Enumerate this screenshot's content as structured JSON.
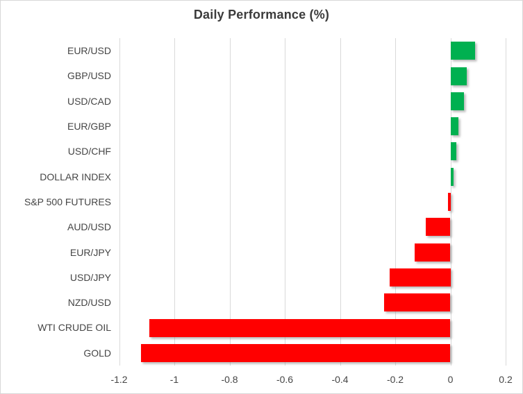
{
  "chart_data": {
    "type": "bar",
    "orientation": "horizontal",
    "title": "Daily Performance (%)",
    "categories": [
      "EUR/USD",
      "GBP/USD",
      "USD/CAD",
      "EUR/GBP",
      "USD/CHF",
      "DOLLAR INDEX",
      "S&P 500 FUTURES",
      "AUD/USD",
      "EUR/JPY",
      "USD/JPY",
      "NZD/USD",
      "WTI CRUDE OIL",
      "GOLD"
    ],
    "values": [
      0.09,
      0.06,
      0.05,
      0.03,
      0.02,
      0.01,
      -0.01,
      -0.09,
      -0.13,
      -0.22,
      -0.24,
      -1.09,
      -1.12
    ],
    "xlim": [
      -1.2,
      0.2
    ],
    "x_ticks": [
      -1.2,
      -1.0,
      -0.8,
      -0.6,
      -0.4,
      -0.2,
      0,
      0.2
    ],
    "x_tick_labels": [
      "-1.2",
      "-1",
      "-0.8",
      "-0.6",
      "-0.4",
      "-0.2",
      "0",
      "0.2"
    ],
    "grid": "vertical-on",
    "legend": "none",
    "colors": {
      "positive": "#00B050",
      "negative": "#FF0000",
      "gridline": "#D9D9D9",
      "text": "#454545"
    }
  }
}
